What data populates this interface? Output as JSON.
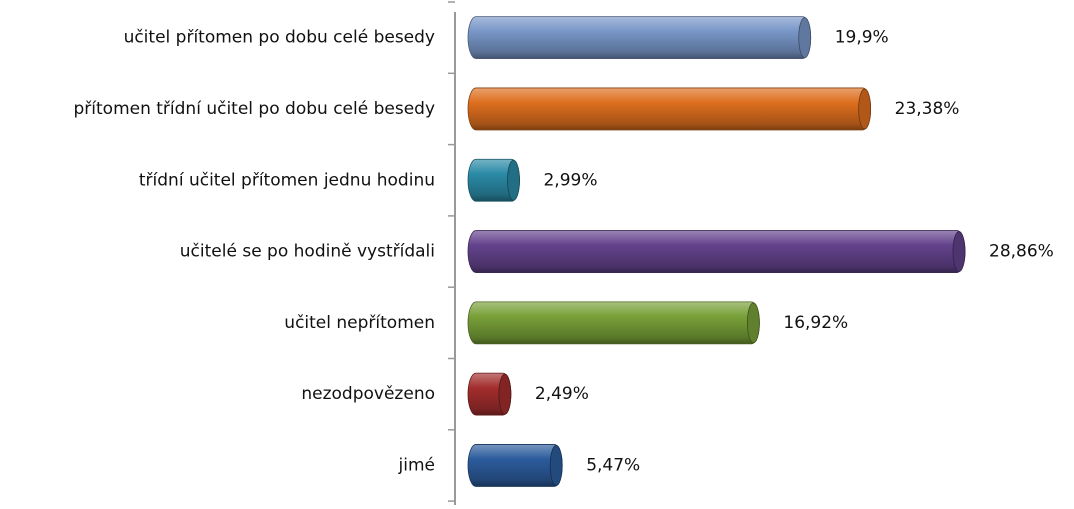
{
  "chart_data": {
    "type": "bar",
    "categories": [
      "učitel přítomen po dobu celé besedy",
      "přítomen třídní učitel po dobu celé besedy",
      "třídní učitel přítomen jednu hodinu",
      "učitelé se po hodině vystřídali",
      "učitel nepřítomen",
      "nezodpovězeno",
      "jimé"
    ],
    "values": [
      19.9,
      23.38,
      2.99,
      28.86,
      16.92,
      2.49,
      5.47
    ],
    "value_labels": [
      "19,9%",
      "23,38%",
      "2,99%",
      "28,86%",
      "16,92%",
      "2,49%",
      "5,47%"
    ],
    "colors": [
      "#7896c8",
      "#dd6e1e",
      "#2b8aa6",
      "#63428c",
      "#78a038",
      "#a32d2d",
      "#2c5c9c"
    ]
  }
}
